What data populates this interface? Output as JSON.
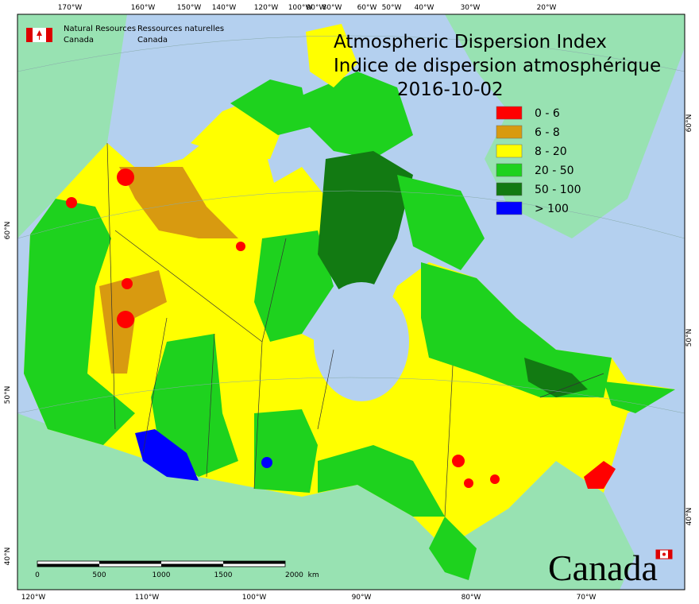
{
  "header": {
    "logo": {
      "en": [
        "Natural Resources",
        "Canada"
      ],
      "fr": [
        "Ressources naturelles",
        "Canada"
      ]
    },
    "title": "Atmospheric Dispersion Index",
    "subtitle": "Indice de dispersion atmosphérique",
    "date": "2016-10-02"
  },
  "legend": [
    {
      "label": "0 - 6",
      "color": "#ff0000"
    },
    {
      "label": "6 - 8",
      "color": "#d89a10"
    },
    {
      "label": "8 - 20",
      "color": "#ffff00"
    },
    {
      "label": "20 - 50",
      "color": "#1ed21e"
    },
    {
      "label": "50 - 100",
      "color": "#127a12"
    },
    {
      "label": "> 100",
      "color": "#0000ff"
    }
  ],
  "graticule": {
    "top": [
      "170°W",
      "160°W",
      "150°W",
      "140°W",
      "120°W",
      "100°W",
      "90°W",
      "80°W",
      "60°W",
      "50°W",
      "40°W",
      "30°W",
      "20°W"
    ],
    "bottom": [
      "120°W",
      "110°W",
      "100°W",
      "90°W",
      "80°W",
      "70°W"
    ],
    "left": [
      "60°N",
      "50°N",
      "40°N"
    ],
    "right": [
      "60°N",
      "50°N",
      "40°N"
    ]
  },
  "scale_bar": {
    "labels": [
      "0",
      "500",
      "1000",
      "1500",
      "2000  km"
    ]
  },
  "wordmark": "Canada"
}
